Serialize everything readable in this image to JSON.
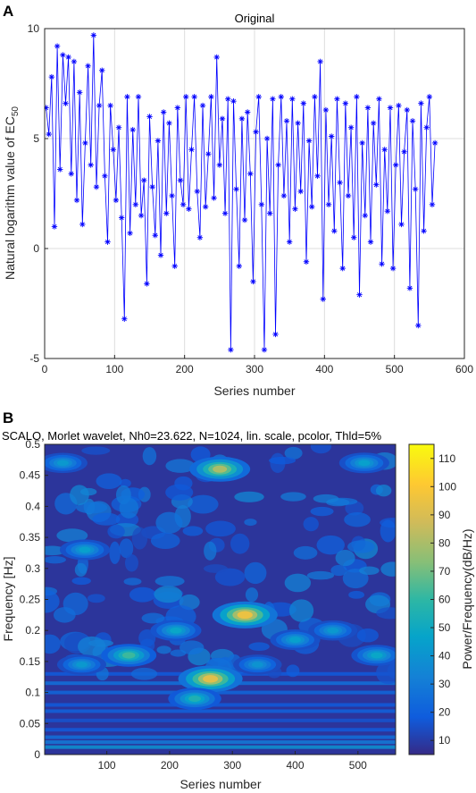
{
  "panel_a": {
    "letter": "A",
    "title": "Original",
    "xlabel": "Series number",
    "ylabel_main": "Natural logarithm value of EC",
    "ylabel_sub": "50"
  },
  "panel_b": {
    "letter": "B",
    "title": "SCALO, Morlet wavelet, Nh0=23.622, N=1024, lin. scale, pcolor, Thld=5%",
    "xlabel": "Series number",
    "ylabel": "Frequency [Hz]",
    "colorbar_label": "Power/Frequency(dB/Hz)"
  },
  "chart_data": [
    {
      "type": "line",
      "title": "Original",
      "xlabel": "Series number",
      "ylabel": "Natural logarithm value of EC50",
      "xlim": [
        0,
        600
      ],
      "ylim": [
        -5,
        10
      ],
      "xticks": [
        0,
        100,
        200,
        300,
        400,
        500,
        600
      ],
      "yticks": [
        -5,
        0,
        5,
        10
      ],
      "grid": true,
      "color": "#0000ff",
      "marker": "*",
      "series": [
        {
          "x": [
            2,
            6,
            10,
            14,
            18,
            22,
            26,
            30,
            34,
            38,
            42,
            46,
            50,
            54,
            58,
            62,
            66,
            70,
            74,
            78,
            82,
            86,
            90,
            94,
            98,
            102,
            106,
            110,
            114,
            118,
            122,
            126,
            130,
            134,
            138,
            142,
            146,
            150,
            154,
            158,
            162,
            166,
            170,
            174,
            178,
            182,
            186,
            190,
            194,
            198,
            202,
            206,
            210,
            214,
            218,
            222,
            226,
            230,
            234,
            238,
            242,
            246,
            250,
            254,
            258,
            262,
            266,
            270,
            274,
            278,
            282,
            286,
            290,
            294,
            298,
            302,
            306,
            310,
            314,
            318,
            322,
            326,
            330,
            334,
            338,
            342,
            346,
            350,
            354,
            358,
            362,
            366,
            370,
            374,
            378,
            382,
            386,
            390,
            394,
            398,
            402,
            406,
            410,
            414,
            418,
            422,
            426,
            430,
            434,
            438,
            442,
            446,
            450,
            454,
            458,
            462,
            466,
            470,
            474,
            478,
            482,
            486,
            490,
            494,
            498,
            502,
            506,
            510,
            514,
            518,
            522,
            526,
            530,
            534,
            538,
            542,
            546,
            550,
            554,
            558
          ],
          "y": [
            6.4,
            5.2,
            7.8,
            1.0,
            9.2,
            3.6,
            8.8,
            6.6,
            8.7,
            3.4,
            8.5,
            2.2,
            7.1,
            1.1,
            4.8,
            8.3,
            3.8,
            9.7,
            2.8,
            6.5,
            8.1,
            3.3,
            0.3,
            6.5,
            4.5,
            2.2,
            5.5,
            1.4,
            -3.2,
            6.9,
            0.7,
            5.4,
            2.0,
            6.9,
            1.5,
            3.1,
            -1.6,
            6.0,
            2.8,
            0.6,
            4.9,
            -0.3,
            6.2,
            1.6,
            5.7,
            2.4,
            -0.8,
            6.4,
            3.1,
            2.0,
            6.9,
            1.8,
            4.5,
            6.9,
            2.6,
            0.5,
            6.5,
            1.9,
            4.3,
            6.9,
            2.3,
            8.7,
            3.8,
            5.9,
            1.6,
            6.8,
            -4.6,
            6.7,
            2.7,
            -0.8,
            5.9,
            1.3,
            6.2,
            3.4,
            -1.5,
            5.3,
            6.9,
            2.0,
            -4.6,
            5.0,
            1.6,
            6.8,
            -3.9,
            3.8,
            6.9,
            2.4,
            5.8,
            0.3,
            6.8,
            1.8,
            5.7,
            2.6,
            6.6,
            -0.6,
            4.9,
            1.9,
            6.9,
            3.3,
            8.5,
            -2.3,
            6.3,
            2.0,
            5.1,
            0.8,
            6.8,
            3.0,
            -0.9,
            6.6,
            2.4,
            5.5,
            0.5,
            6.9,
            -2.1,
            4.8,
            1.5,
            6.4,
            0.3,
            5.7,
            2.9,
            6.8,
            -0.7,
            4.5,
            1.7,
            6.4,
            -0.9,
            3.8,
            6.5,
            1.1,
            4.4,
            6.3,
            -1.8,
            5.8,
            2.7,
            -3.5,
            6.6,
            0.8,
            5.5,
            6.9,
            2.0,
            4.8
          ]
        }
      ]
    },
    {
      "type": "heatmap",
      "title": "SCALO, Morlet wavelet, Nh0=23.622, N=1024, lin. scale, pcolor, Thld=5%",
      "xlabel": "Series number",
      "ylabel": "Frequency [Hz]",
      "xlim": [
        1,
        560
      ],
      "ylim": [
        0,
        0.5
      ],
      "xticks": [
        100,
        200,
        300,
        400,
        500
      ],
      "yticks": [
        0,
        0.05,
        0.1,
        0.15,
        0.2,
        0.25,
        0.3,
        0.35,
        0.4,
        0.45,
        0.5
      ],
      "colorbar": {
        "label": "Power/Frequency(dB/Hz)",
        "ticks": [
          10,
          20,
          30,
          40,
          50,
          60,
          70,
          80,
          90,
          100,
          110
        ],
        "range": [
          5,
          115
        ],
        "colormap": "parula"
      },
      "background_value": 8,
      "hotspots": [
        {
          "x": 320,
          "y": 0.225,
          "value": 95
        },
        {
          "x": 265,
          "y": 0.122,
          "value": 92
        },
        {
          "x": 280,
          "y": 0.46,
          "value": 80
        },
        {
          "x": 135,
          "y": 0.16,
          "value": 62
        },
        {
          "x": 240,
          "y": 0.09,
          "value": 55
        },
        {
          "x": 65,
          "y": 0.33,
          "value": 45
        },
        {
          "x": 30,
          "y": 0.47,
          "value": 42
        },
        {
          "x": 510,
          "y": 0.47,
          "value": 45
        },
        {
          "x": 210,
          "y": 0.2,
          "value": 48
        },
        {
          "x": 400,
          "y": 0.185,
          "value": 45
        },
        {
          "x": 460,
          "y": 0.2,
          "value": 42
        },
        {
          "x": 530,
          "y": 0.16,
          "value": 48
        },
        {
          "x": 60,
          "y": 0.145,
          "value": 42
        },
        {
          "x": 340,
          "y": 0.145,
          "value": 40
        }
      ]
    }
  ]
}
